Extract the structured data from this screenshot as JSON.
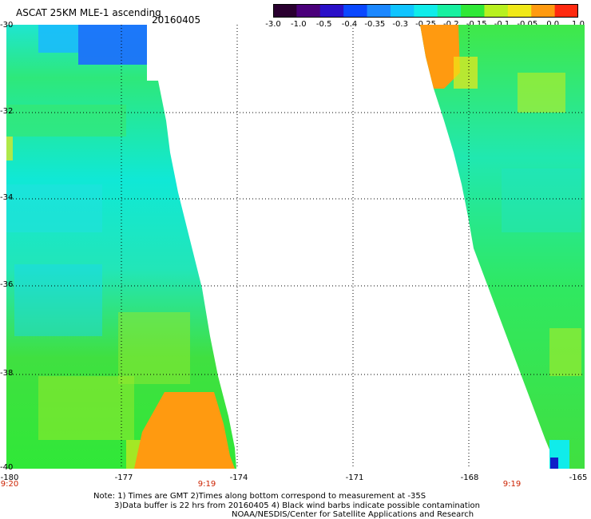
{
  "header": {
    "title": "ASCAT 25KM MLE-1 ascending",
    "date": "20160405"
  },
  "colorbar": {
    "labels": [
      "-3.0",
      "-1.0",
      "-0.5",
      "-0.4",
      "-0.35",
      "-0.3",
      "-0.25",
      "-0.2",
      "-0.15",
      "-0.1",
      "-0.05",
      "0.0",
      "1.0"
    ],
    "colors": [
      "#2a0030",
      "#4a007a",
      "#2a10c8",
      "#0a48ff",
      "#1c88ff",
      "#10c4ff",
      "#10ecea",
      "#18f0a0",
      "#30e838",
      "#b8f020",
      "#f0e818",
      "#ff9a10",
      "#ff2a10"
    ]
  },
  "axes": {
    "y_labels": [
      "-30",
      "-32",
      "-34",
      "-36",
      "-38",
      "-40"
    ],
    "x_labels": [
      "-180",
      "-177",
      "-174",
      "-171",
      "-168",
      "-165"
    ]
  },
  "times": [
    "9:20",
    "9:19",
    "9:19"
  ],
  "notes": [
    "Note: 1) Times are GMT 2)Times along bottom correspond to measurement at -35S",
    "3)Data buffer is 22 hrs from 20160405 4) Black wind barbs indicate possible contamination",
    "NOAA/NESDIS/Center for Satellite Applications and Research"
  ]
}
